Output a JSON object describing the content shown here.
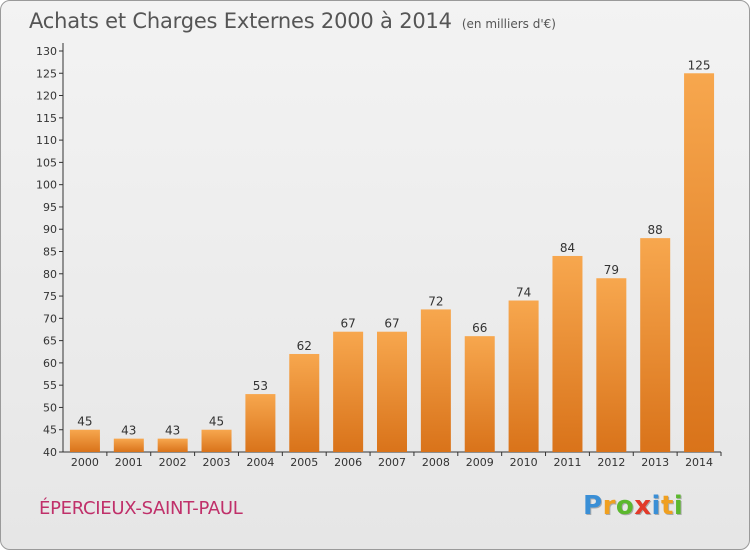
{
  "title": "Achats et Charges Externes 2000 à 2014",
  "unit_note": "(en milliers d'€)",
  "commune": "ÉPERCIEUX-SAINT-PAUL",
  "logo": {
    "letters": [
      "P",
      "r",
      "o",
      "x",
      "i",
      "t",
      "i"
    ],
    "colors": [
      "#3a8fd6",
      "#f0a020",
      "#5cb82e",
      "#e23a2a",
      "#3a8fd6",
      "#f0a020",
      "#5cb82e"
    ]
  },
  "colors": {
    "bar_top": "#f7a74e",
    "bar_bottom": "#d9731a",
    "commune_text": "#c0306a"
  },
  "chart_data": {
    "type": "bar",
    "categories": [
      "2000",
      "2001",
      "2002",
      "2003",
      "2004",
      "2005",
      "2006",
      "2007",
      "2008",
      "2009",
      "2010",
      "2011",
      "2012",
      "2013",
      "2014"
    ],
    "values": [
      45,
      43,
      43,
      45,
      53,
      62,
      67,
      67,
      72,
      66,
      74,
      84,
      79,
      88,
      125
    ],
    "data_labels": [
      "45",
      "43",
      "43",
      "45",
      "53",
      "62",
      "67",
      "67",
      "72",
      "66",
      "74",
      "84",
      "79",
      "88",
      "125"
    ],
    "yticks": [
      "40",
      "45",
      "50",
      "55",
      "60",
      "65",
      "70",
      "75",
      "80",
      "85",
      "90",
      "95",
      "100",
      "105",
      "110",
      "115",
      "120",
      "125",
      "130"
    ],
    "ylim": [
      40,
      130
    ],
    "grid": false
  }
}
